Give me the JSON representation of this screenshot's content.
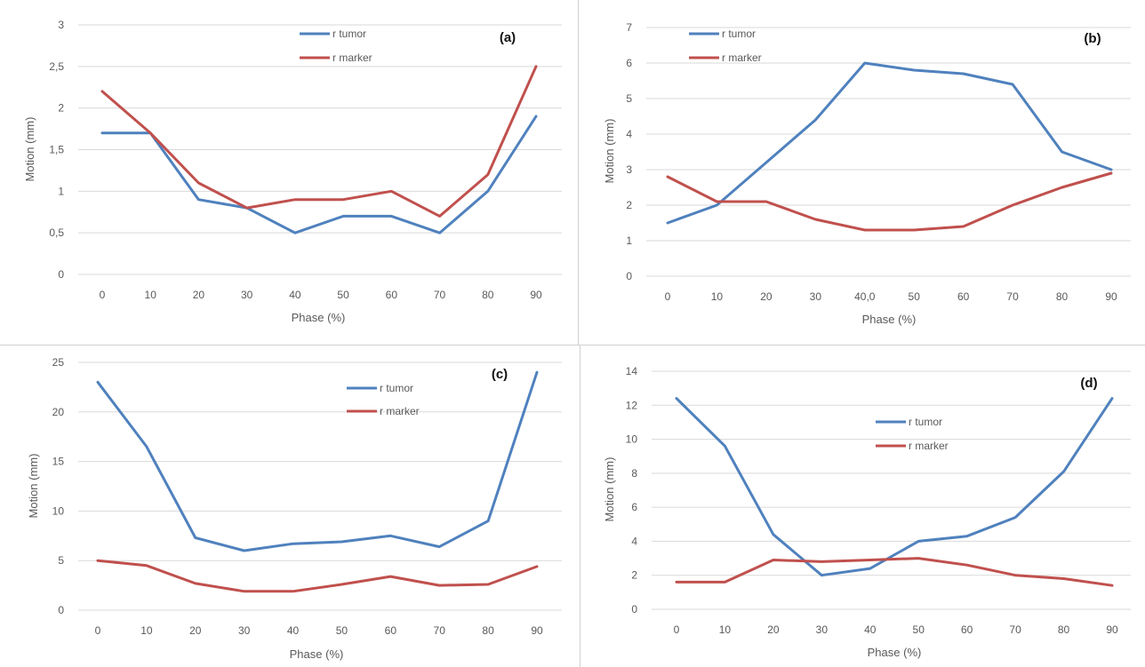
{
  "colors": {
    "tumor": "#4f81bd",
    "marker": "#c0504d",
    "grid": "#d9d9d9",
    "text": "#595959"
  },
  "chart_data": [
    {
      "type": "line",
      "panel_label": "(a)",
      "categories": [
        "0",
        "10",
        "20",
        "30",
        "40",
        "50",
        "60",
        "70",
        "80",
        "90"
      ],
      "xlabel": "Phase (%)",
      "ylabel": "Motion (mm)",
      "ylim": [
        0,
        3
      ],
      "yticks": [
        "0",
        "0,5",
        "1",
        "1,5",
        "2",
        "2,5",
        "3"
      ],
      "grid": "horizontal",
      "legend": "top-center",
      "series": [
        {
          "name": "r tumor",
          "color": "#4f81bd",
          "values": [
            1.7,
            1.7,
            0.9,
            0.8,
            0.5,
            0.7,
            0.7,
            0.5,
            1.0,
            1.9
          ]
        },
        {
          "name": "r marker",
          "color": "#c0504d",
          "values": [
            2.2,
            1.7,
            1.1,
            0.8,
            0.9,
            0.9,
            1.0,
            0.7,
            1.2,
            2.5
          ]
        }
      ]
    },
    {
      "type": "line",
      "panel_label": "(b)",
      "categories": [
        "0",
        "10",
        "20",
        "30",
        "40,0",
        "50",
        "60",
        "70",
        "80",
        "90"
      ],
      "xlabel": "Phase (%)",
      "ylabel": "Motion (mm)",
      "ylim": [
        0,
        7
      ],
      "yticks": [
        "0",
        "1",
        "2",
        "3",
        "4",
        "5",
        "6",
        "7"
      ],
      "grid": "horizontal",
      "legend": "top-left",
      "series": [
        {
          "name": "r tumor",
          "color": "#4f81bd",
          "values": [
            1.5,
            2.0,
            3.2,
            4.4,
            6.0,
            5.8,
            5.7,
            5.4,
            3.5,
            3.0
          ]
        },
        {
          "name": "r marker",
          "color": "#c0504d",
          "values": [
            2.8,
            2.1,
            2.1,
            1.6,
            1.3,
            1.3,
            1.4,
            2.0,
            2.5,
            2.9
          ]
        }
      ]
    },
    {
      "type": "line",
      "panel_label": "(c)",
      "categories": [
        "0",
        "10",
        "20",
        "30",
        "40",
        "50",
        "60",
        "70",
        "80",
        "90"
      ],
      "xlabel": "Phase (%)",
      "ylabel": "Motion (mm)",
      "ylim": [
        0,
        25
      ],
      "yticks": [
        "0",
        "5",
        "10",
        "15",
        "20",
        "25"
      ],
      "grid": "horizontal",
      "legend": "top-right",
      "series": [
        {
          "name": "r tumor",
          "color": "#4f81bd",
          "values": [
            23.0,
            16.5,
            7.3,
            6.0,
            6.7,
            6.9,
            7.5,
            6.4,
            9.0,
            24.0
          ]
        },
        {
          "name": "r marker",
          "color": "#c0504d",
          "values": [
            5.0,
            4.5,
            2.7,
            1.9,
            1.9,
            2.6,
            3.4,
            2.5,
            2.6,
            4.4
          ]
        }
      ]
    },
    {
      "type": "line",
      "panel_label": "(d)",
      "categories": [
        "0",
        "10",
        "20",
        "30",
        "40",
        "50",
        "60",
        "70",
        "80",
        "90"
      ],
      "xlabel": "Phase (%)",
      "ylabel": "Motion (mm)",
      "ylim": [
        0,
        14
      ],
      "yticks": [
        "0",
        "2",
        "4",
        "6",
        "8",
        "10",
        "12",
        "14"
      ],
      "grid": "horizontal",
      "legend": "center",
      "series": [
        {
          "name": "r tumor",
          "color": "#4f81bd",
          "values": [
            12.4,
            9.6,
            4.4,
            2.0,
            2.4,
            4.0,
            4.3,
            5.4,
            8.1,
            12.4
          ]
        },
        {
          "name": "r marker",
          "color": "#c0504d",
          "values": [
            1.6,
            1.6,
            2.9,
            2.8,
            2.9,
            3.0,
            2.6,
            2.0,
            1.8,
            1.4
          ]
        }
      ]
    }
  ]
}
